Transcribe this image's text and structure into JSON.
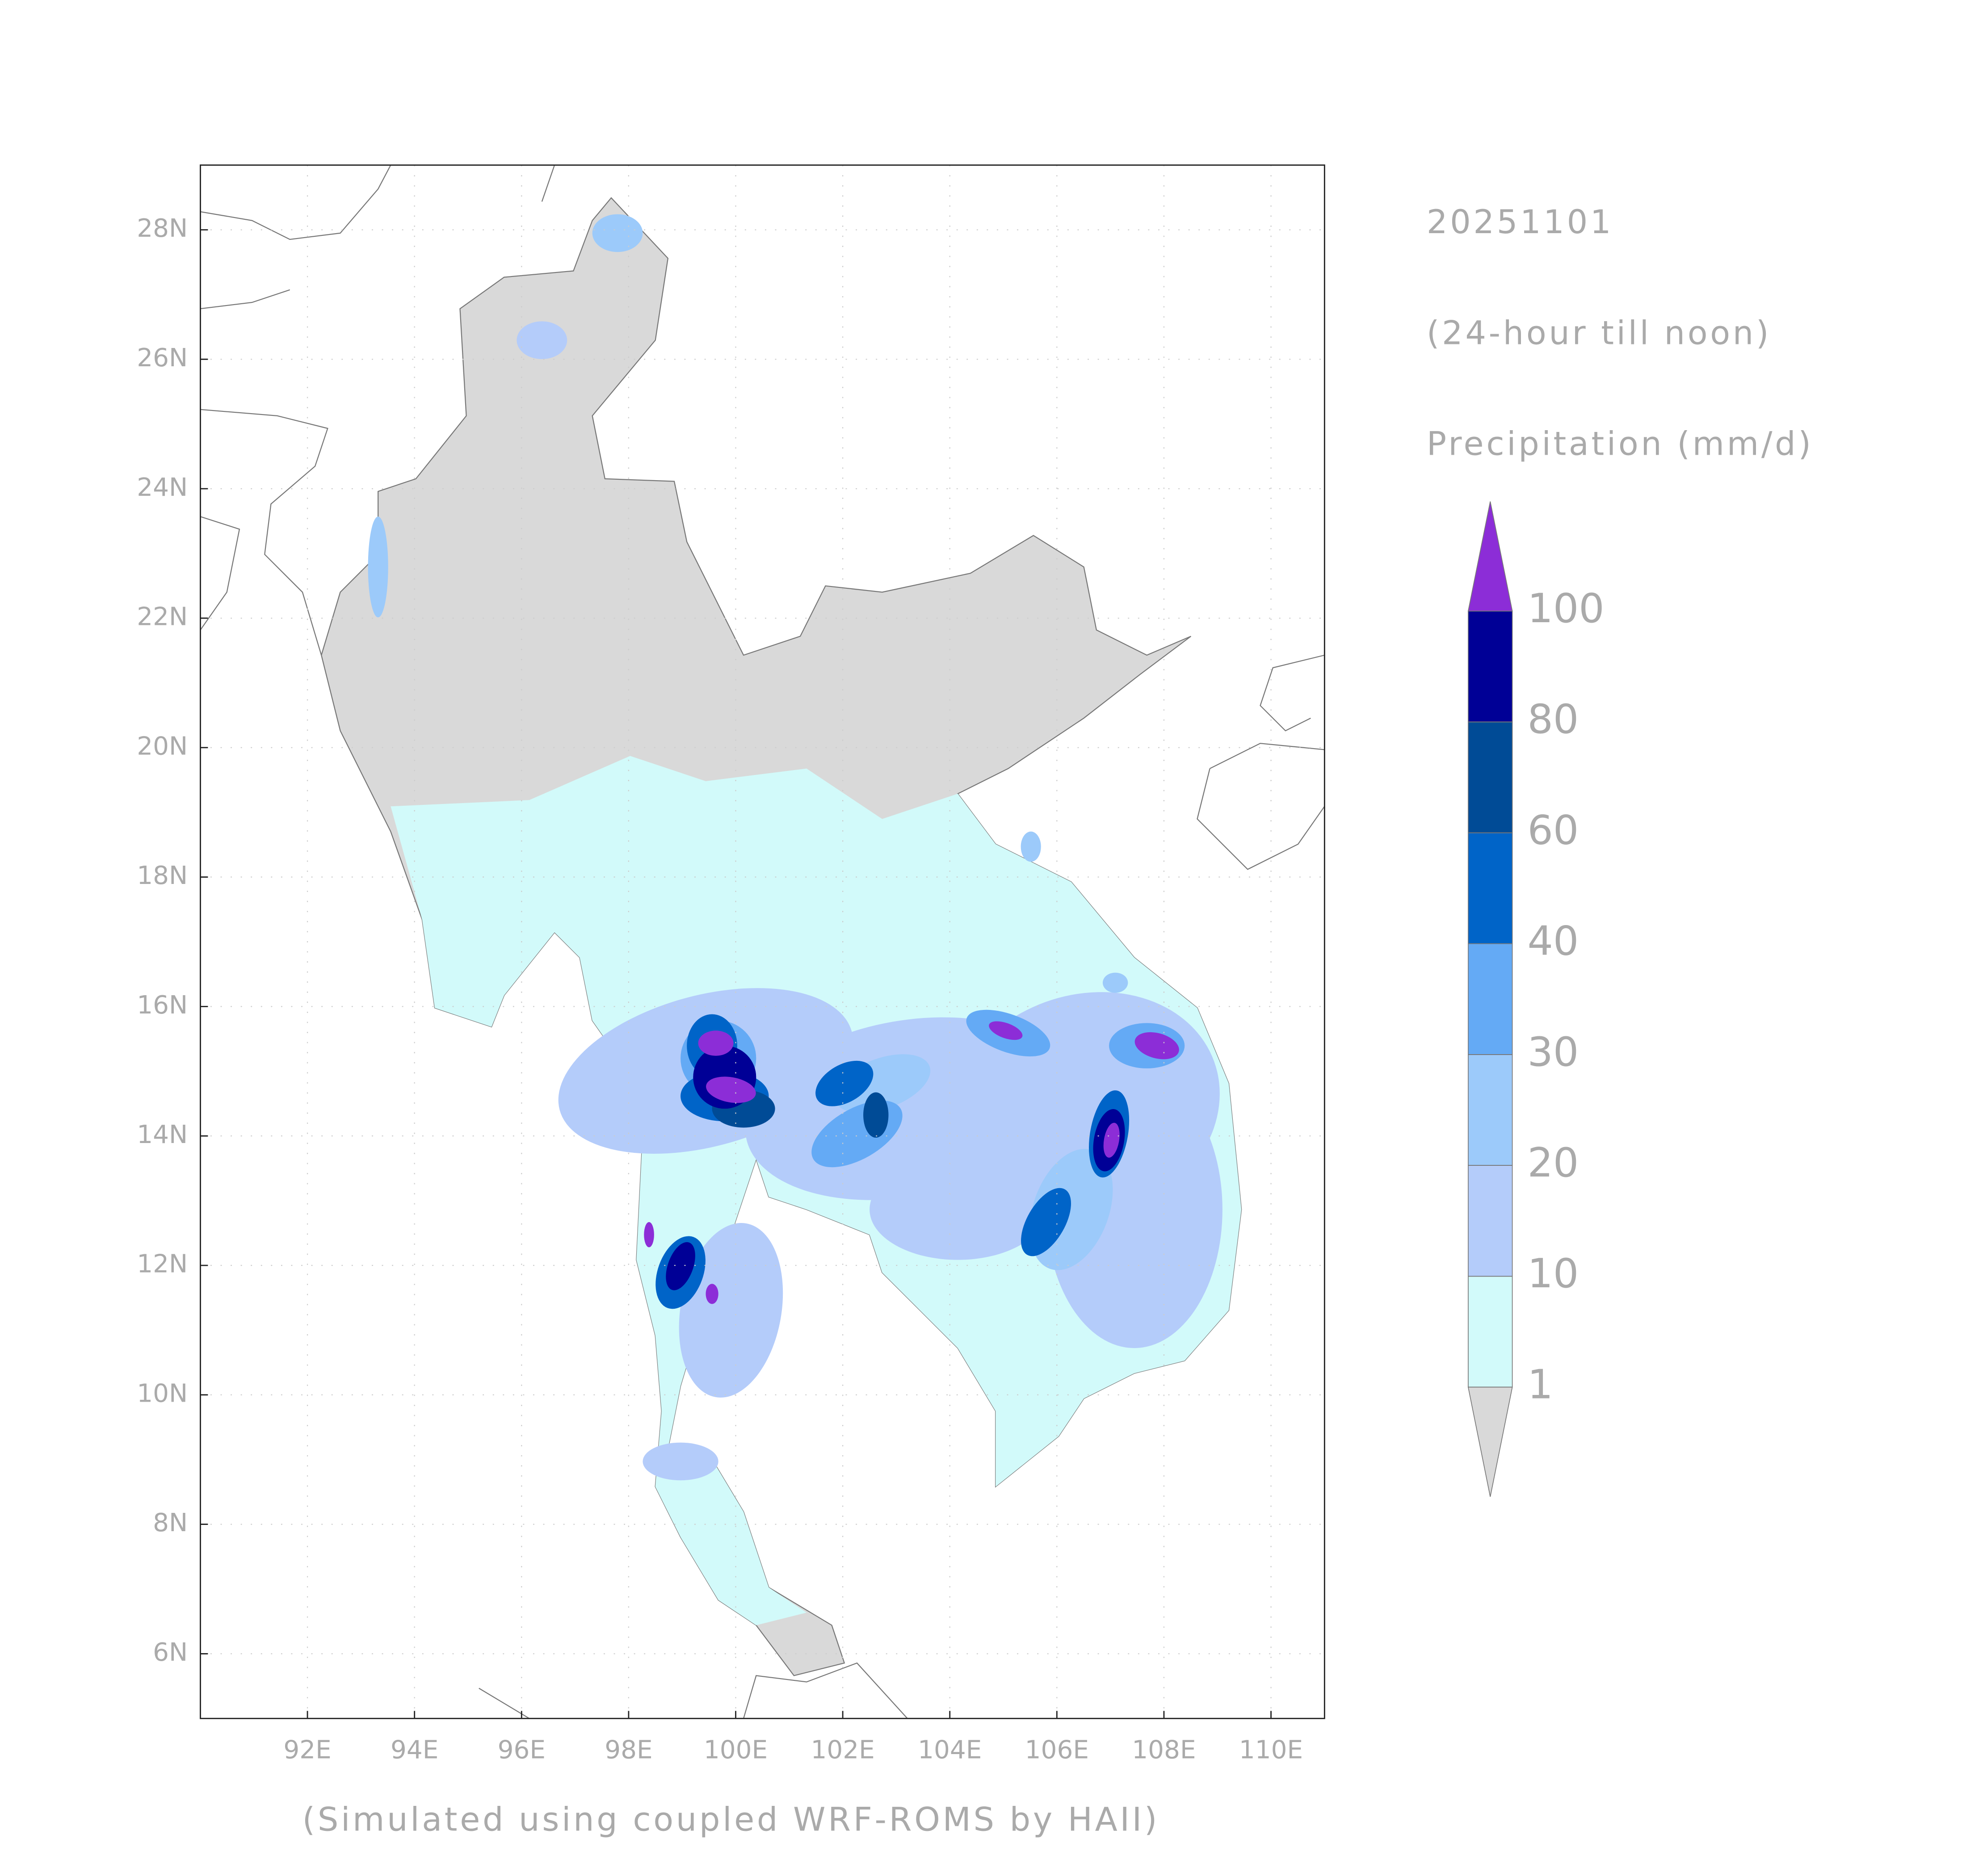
{
  "map": {
    "title_date": "20251101",
    "subtitle": "(24-hour till noon)",
    "variable": "Precipitation (mm/d)",
    "footer": "(Simulated using coupled WRF-ROMS by HAII)",
    "xlim": [
      90,
      111
    ],
    "ylim": [
      5,
      29
    ],
    "xticks": [
      {
        "value": 92,
        "label": "92E"
      },
      {
        "value": 94,
        "label": "94E"
      },
      {
        "value": 96,
        "label": "96E"
      },
      {
        "value": 98,
        "label": "98E"
      },
      {
        "value": 100,
        "label": "100E"
      },
      {
        "value": 102,
        "label": "102E"
      },
      {
        "value": 104,
        "label": "104E"
      },
      {
        "value": 106,
        "label": "106E"
      },
      {
        "value": 108,
        "label": "108E"
      },
      {
        "value": 110,
        "label": "110E"
      }
    ],
    "yticks": [
      {
        "value": 6,
        "label": "6N"
      },
      {
        "value": 8,
        "label": "8N"
      },
      {
        "value": 10,
        "label": "10N"
      },
      {
        "value": 12,
        "label": "12N"
      },
      {
        "value": 14,
        "label": "14N"
      },
      {
        "value": 16,
        "label": "16N"
      },
      {
        "value": 18,
        "label": "18N"
      },
      {
        "value": 20,
        "label": "20N"
      },
      {
        "value": 22,
        "label": "22N"
      },
      {
        "value": 24,
        "label": "24N"
      },
      {
        "value": 26,
        "label": "26N"
      },
      {
        "value": 28,
        "label": "28N"
      }
    ],
    "grid": true,
    "colorbar": {
      "levels": [
        1,
        10,
        20,
        30,
        40,
        60,
        80,
        100
      ],
      "colors": [
        "#d9d9d9",
        "#d2fafa",
        "#b4ccfa",
        "#9ccafa",
        "#64aaf5",
        "#0064c8",
        "#004b96",
        "#000096",
        "#8c2dd7"
      ],
      "extend": "both"
    }
  }
}
